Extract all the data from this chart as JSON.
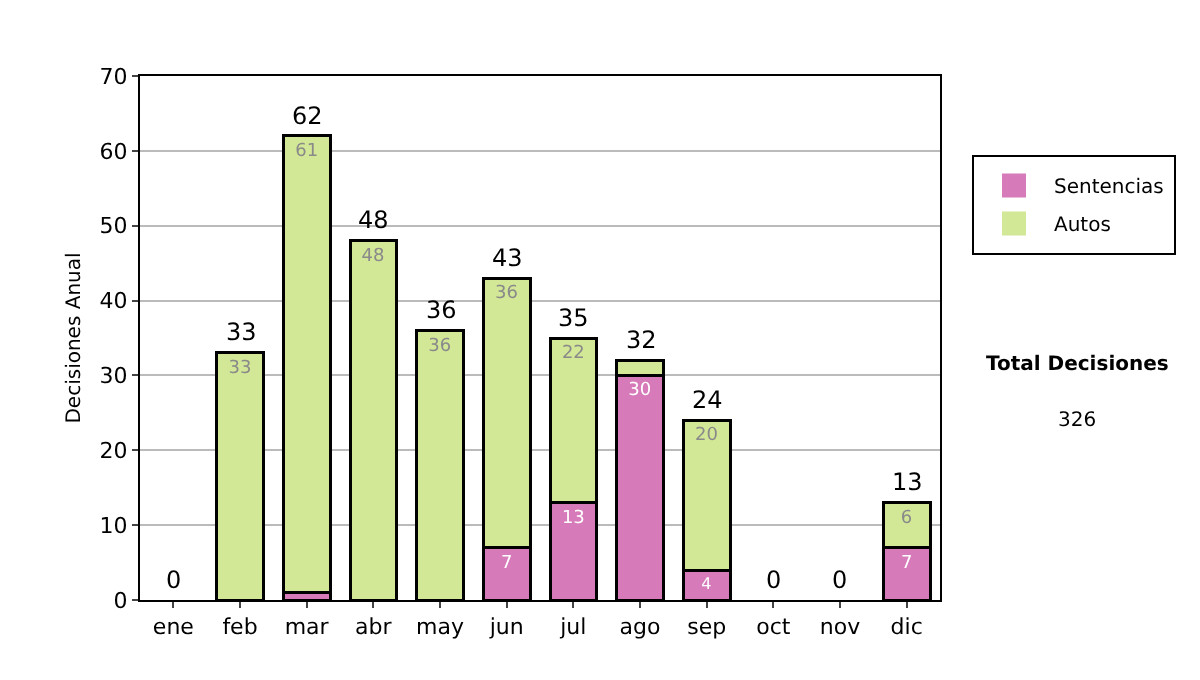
{
  "chart_data": {
    "type": "bar",
    "stacked": true,
    "ylabel": "Decisiones Anual",
    "categories": [
      "ene",
      "feb",
      "mar",
      "abr",
      "may",
      "jun",
      "jul",
      "ago",
      "sep",
      "oct",
      "nov",
      "dic"
    ],
    "series": [
      {
        "name": "Sentencias",
        "color": "#d67ab9",
        "values": [
          0,
          0,
          1,
          0,
          0,
          7,
          13,
          30,
          4,
          0,
          0,
          7
        ],
        "value_labels": [
          null,
          null,
          null,
          null,
          null,
          "7",
          "13",
          "30",
          "4",
          null,
          null,
          "7"
        ]
      },
      {
        "name": "Autos",
        "color": "#d2e896",
        "values": [
          0,
          33,
          61,
          48,
          36,
          36,
          22,
          2,
          20,
          0,
          0,
          6
        ],
        "value_labels": [
          null,
          "33",
          "61",
          "48",
          "36",
          "36",
          "22",
          null,
          "20",
          null,
          null,
          "6"
        ]
      }
    ],
    "totals": [
      "0",
      "33",
      "62",
      "48",
      "36",
      "43",
      "35",
      "32",
      "24",
      "0",
      "0",
      "13"
    ],
    "ylim": [
      0,
      70
    ],
    "yticks": [
      0,
      10,
      20,
      30,
      40,
      50,
      60,
      70
    ],
    "grid": "y",
    "legend": "right",
    "annotations": [
      "Total Decisiones",
      "326"
    ]
  }
}
